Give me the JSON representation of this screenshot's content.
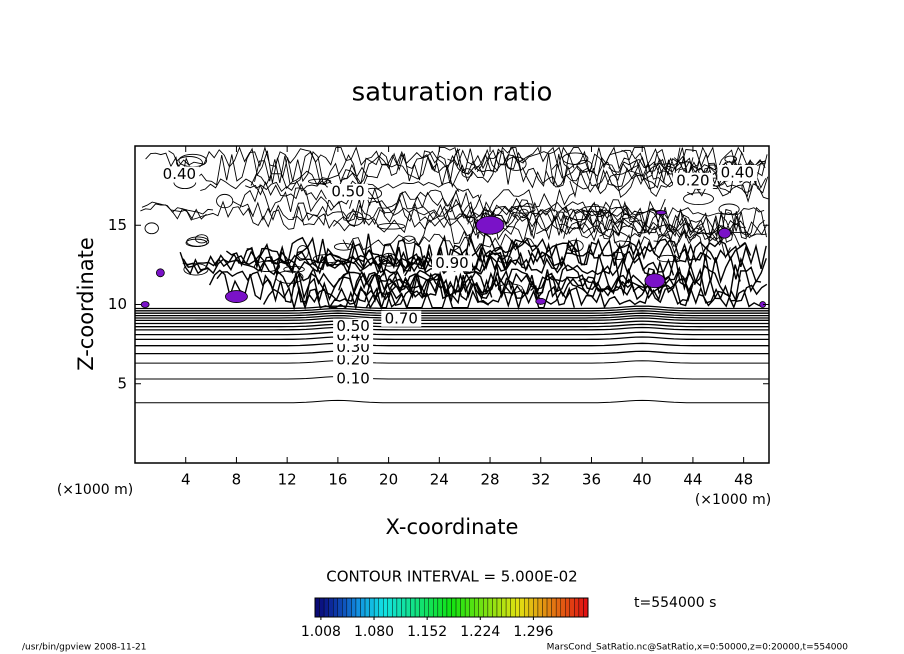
{
  "chart_data": {
    "type": "contour",
    "title": "saturation ratio",
    "x_label": "X-coordinate",
    "y_label": "Z-coordinate",
    "x_unit_left": "(×1000 m)",
    "x_unit_right": "(×1000 m)",
    "xlim": [
      0,
      50
    ],
    "xticks": [
      4,
      8,
      12,
      16,
      20,
      24,
      28,
      32,
      36,
      40,
      44,
      48
    ],
    "ylim": [
      0,
      20
    ],
    "yticks": [
      5,
      10,
      15
    ],
    "contour_labels": [
      {
        "value": 0.1,
        "label": "0.10"
      },
      {
        "value": 0.2,
        "label": "0.20"
      },
      {
        "value": 0.3,
        "label": "0.30"
      },
      {
        "value": 0.4,
        "label": "0.40"
      },
      {
        "value": 0.5,
        "label": "0.50"
      },
      {
        "value": 0.4,
        "label": "0.40"
      },
      {
        "value": 0.5,
        "label": "0.50"
      },
      {
        "value": 0.2,
        "label": "0.20"
      },
      {
        "value": 0.4,
        "label": "0.40"
      },
      {
        "value": 0.9,
        "label": "0.90"
      },
      {
        "value": 0.7,
        "label": "0.70"
      }
    ],
    "contour_interval_text": "CONTOUR INTERVAL = 5.000E-02",
    "colorbar": {
      "lim": [
        1.0,
        1.37
      ],
      "ticks": [
        1.008,
        {
          "value": 1.08,
          "label": "1.080"
        },
        1.152,
        1.224,
        1.296
      ]
    },
    "time_label": "t=554000 s",
    "footer_left": "/usr/bin/gpview  2008-11-21",
    "footer_right": "MarsCond_SatRatio.nc@SatRatio,x=0:50000,z=0:20000,t=554000"
  }
}
